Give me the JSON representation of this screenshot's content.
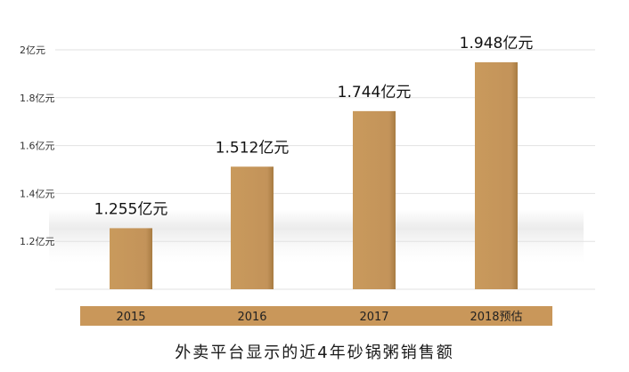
{
  "chart_data": {
    "type": "bar",
    "title": "外卖平台显示的近4年砂锅粥销售额",
    "categories": [
      "2015",
      "2016",
      "2017",
      "2018预估"
    ],
    "values": [
      1.255,
      1.512,
      1.744,
      1.948
    ],
    "data_labels": [
      "1.255亿元",
      "1.512亿元",
      "1.744亿元",
      "1.948亿元"
    ],
    "yticks": [
      1.2,
      1.4,
      1.6,
      1.8,
      2.0
    ],
    "ytick_labels": [
      "1.2亿元",
      "1.4亿元",
      "1.6亿元",
      "1.8亿元",
      "2亿元"
    ],
    "ylim": [
      1.0,
      2.0
    ],
    "xlabel": "",
    "ylabel": "",
    "grid": true,
    "legend": "none",
    "colors": {
      "bar": "#C99A5C",
      "bar_shadow": "#A87C42",
      "category_band": "#C9975A",
      "grid": "#e2e2e2"
    }
  }
}
